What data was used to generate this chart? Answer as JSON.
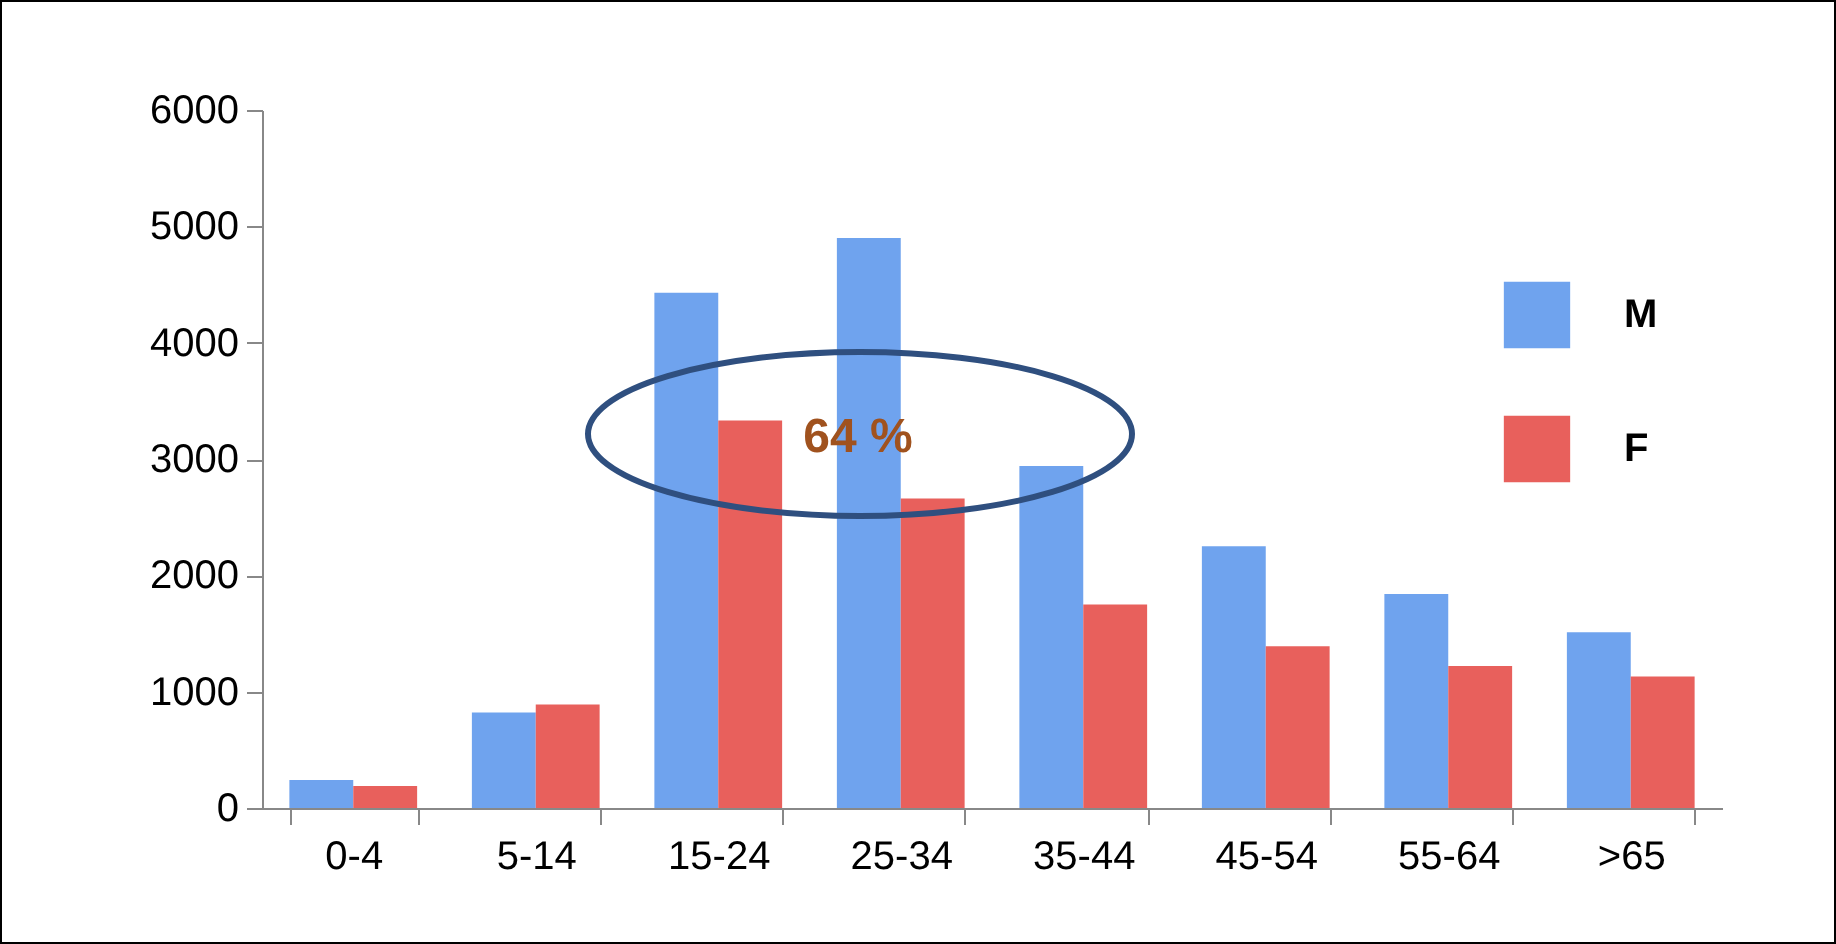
{
  "chart_data": {
    "type": "bar",
    "categories": [
      "0-4",
      "5-14",
      "15-24",
      "25-34",
      "35-44",
      "45-54",
      "55-64",
      ">65"
    ],
    "series": [
      {
        "name": "M",
        "color": "#6fa3ee",
        "values": [
          240,
          820,
          4430,
          4900,
          2940,
          2250,
          1840,
          1510
        ]
      },
      {
        "name": "F",
        "color": "#e8605c",
        "values": [
          190,
          890,
          3330,
          2660,
          1750,
          1390,
          1220,
          1130
        ]
      }
    ],
    "ylim": [
      0,
      6000
    ],
    "yticks": [
      0,
      1000,
      2000,
      3000,
      4000,
      5000,
      6000
    ],
    "grid": false,
    "legend": "top right",
    "annotations": [
      "64 %"
    ]
  }
}
